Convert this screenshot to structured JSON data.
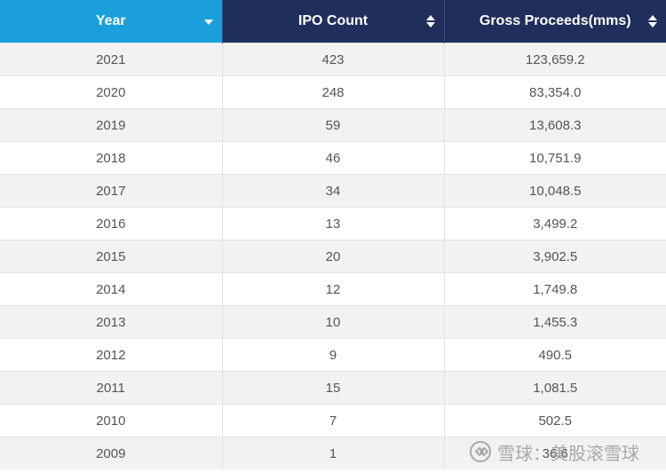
{
  "table": {
    "headers": [
      "Year",
      "IPO Count",
      "Gross Proceeds(mms)"
    ],
    "rows": [
      [
        "2021",
        "423",
        "123,659.2"
      ],
      [
        "2020",
        "248",
        "83,354.0"
      ],
      [
        "2019",
        "59",
        "13,608.3"
      ],
      [
        "2018",
        "46",
        "10,751.9"
      ],
      [
        "2017",
        "34",
        "10,048.5"
      ],
      [
        "2016",
        "13",
        "3,499.2"
      ],
      [
        "2015",
        "20",
        "3,902.5"
      ],
      [
        "2014",
        "12",
        "1,749.8"
      ],
      [
        "2013",
        "10",
        "1,455.3"
      ],
      [
        "2012",
        "9",
        "490.5"
      ],
      [
        "2011",
        "15",
        "1,081.5"
      ],
      [
        "2010",
        "7",
        "502.5"
      ],
      [
        "2009",
        "1",
        "36.6"
      ]
    ]
  },
  "sort_icons": [
    "caret-down-icon",
    "sort-updown-icon",
    "sort-updown-icon"
  ],
  "colors": {
    "active_header": "#1b9fdc",
    "header": "#1f2e5b",
    "row_odd": "#f2f2f2",
    "row_even": "#ffffff",
    "text": "#555555"
  },
  "watermark": {
    "text": "雪球：美股滚雪球",
    "icon": "snowball-logo-icon"
  }
}
